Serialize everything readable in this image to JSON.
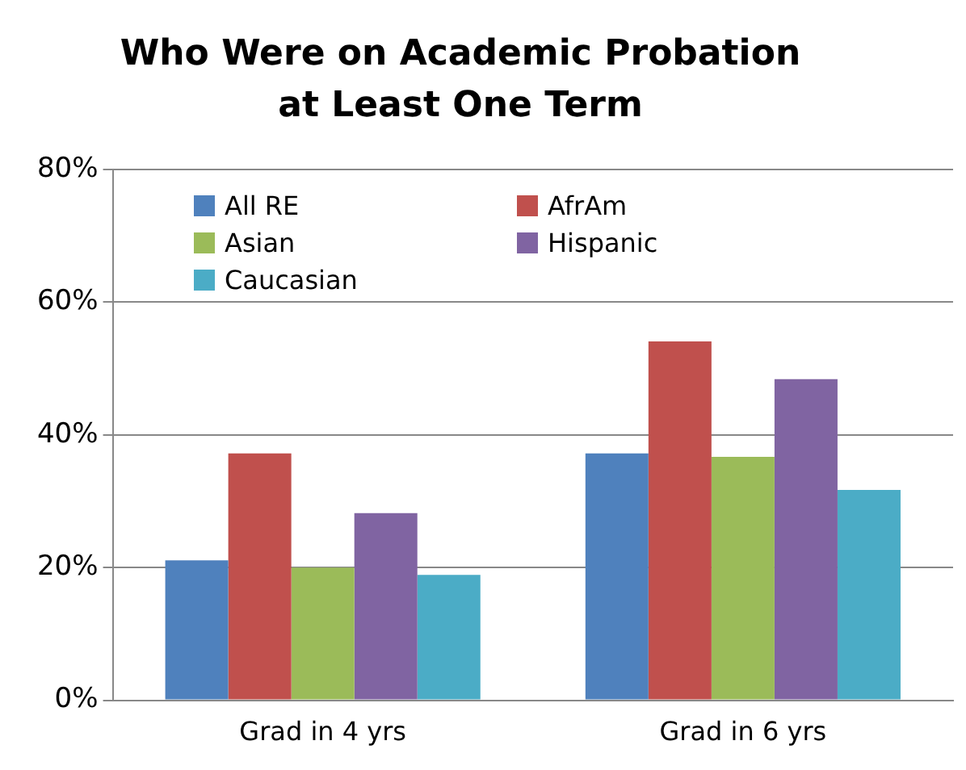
{
  "chart_data": {
    "type": "bar",
    "title": "Who Were on Academic Probation\nat Least One Term",
    "categories": [
      "Grad in 4 yrs",
      "Grad in 6 yrs"
    ],
    "series": [
      {
        "name": "All RE",
        "color": "#4f81bd",
        "values": [
          21.1,
          37.2
        ]
      },
      {
        "name": "AfrAm",
        "color": "#c0504d",
        "values": [
          37.2,
          54.1
        ]
      },
      {
        "name": "Asian",
        "color": "#9bbb59",
        "values": [
          20,
          36.7
        ]
      },
      {
        "name": "Hispanic",
        "color": "#8064a2",
        "values": [
          28.2,
          48.4
        ]
      },
      {
        "name": "Caucasian",
        "color": "#4bacc6",
        "values": [
          18.9,
          31.7
        ]
      }
    ],
    "ylim": [
      0,
      80
    ],
    "yticks": [
      {
        "value": 0,
        "label": "0%"
      },
      {
        "value": 20,
        "label": "20%"
      },
      {
        "value": 40,
        "label": "40%"
      },
      {
        "value": 60,
        "label": "60%"
      },
      {
        "value": 80,
        "label": "80%"
      }
    ],
    "grid": "y",
    "legend": "top left"
  }
}
